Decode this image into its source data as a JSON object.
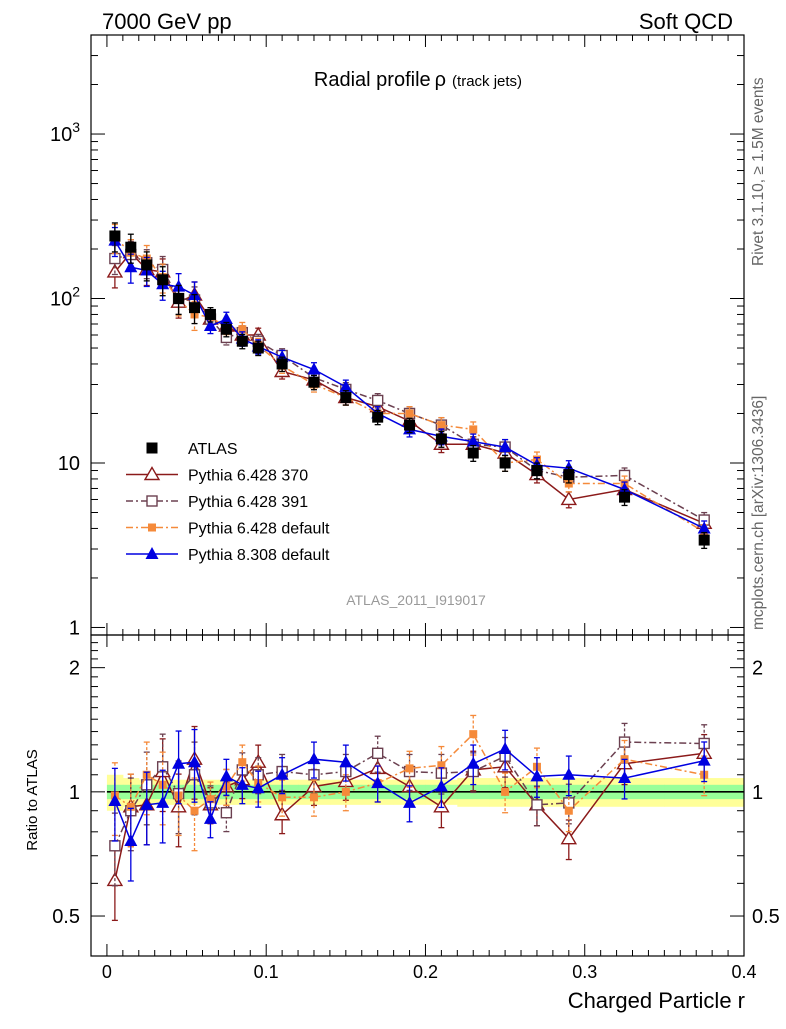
{
  "header": {
    "left": "7000 GeV pp",
    "right": "Soft QCD"
  },
  "side_labels": {
    "rivet": "Rivet 3.1.10, ≥ 1.5M events",
    "mcplots": "mcplots.cern.ch [arXiv:1306.3436]"
  },
  "colors": {
    "atlas": "#000000",
    "p370": "#8b1a1a",
    "p391": "#6b4050",
    "pdefault": "#f58a3a",
    "p8": "#0000e0",
    "band_outer": "#ffff99",
    "band_inner": "#99ff99"
  },
  "chart_data": [
    {
      "type": "scatter",
      "title": "Radial profile",
      "title_symbol": "ρ",
      "title_note": "(track jets)",
      "analysis_label": "ATLAS_2011_I919017",
      "xlabel": "Charged Particle r",
      "ylabel": "",
      "xlim": [
        -0.01,
        0.4
      ],
      "ylim": [
        0.9,
        4000
      ],
      "yscale": "log",
      "y_tick_labels": [
        {
          "v": 1,
          "label": "1"
        },
        {
          "v": 10,
          "label": "10"
        },
        {
          "v": 100,
          "label": "10",
          "exp": "2"
        },
        {
          "v": 1000,
          "label": "10",
          "exp": "3"
        }
      ],
      "legend_position": "bottom-left",
      "x": [
        0.005,
        0.015,
        0.025,
        0.035,
        0.045,
        0.055,
        0.065,
        0.075,
        0.085,
        0.095,
        0.11,
        0.13,
        0.15,
        0.17,
        0.19,
        0.21,
        0.23,
        0.25,
        0.27,
        0.29,
        0.325,
        0.375
      ],
      "series": [
        {
          "name": "ATLAS",
          "key": "atlas",
          "marker": "square-filled",
          "line": "none",
          "values": [
            240,
            205,
            160,
            130,
            100,
            88,
            80,
            65,
            55,
            50,
            40,
            31,
            25,
            19,
            17,
            14,
            11.5,
            10,
            9,
            8.5,
            6.2,
            3.4
          ]
        },
        {
          "name": "Pythia 6.428 370",
          "key": "p370",
          "marker": "triangle-open",
          "line": "solid",
          "values": [
            145,
            190,
            150,
            145,
            95,
            105,
            75,
            68,
            60,
            60,
            36,
            32,
            25,
            22,
            18,
            13,
            13,
            11.5,
            8.5,
            6,
            6.9,
            4.3
          ]
        },
        {
          "name": "Pythia 6.428 391",
          "key": "p391",
          "marker": "square-open",
          "line": "dashdot",
          "values": [
            175,
            185,
            165,
            150,
            100,
            98,
            75,
            58,
            62,
            55,
            45,
            33,
            28,
            24,
            20,
            17,
            13,
            12.5,
            9,
            8.2,
            8.4,
            4.5
          ]
        },
        {
          "name": "Pythia 6.428 default",
          "key": "pdefault",
          "marker": "square-filled-small",
          "line": "dashdot",
          "values": [
            235,
            190,
            175,
            135,
            98,
            80,
            77,
            67,
            65,
            52,
            39,
            30,
            25,
            20,
            20,
            17,
            16,
            10,
            10.5,
            7.5,
            7.5,
            3.8
          ]
        },
        {
          "name": "Pythia 8.308 default",
          "key": "p8",
          "marker": "triangle-filled",
          "line": "solid",
          "values": [
            225,
            155,
            148,
            122,
            118,
            105,
            68,
            75,
            57,
            51,
            44,
            37,
            29,
            20,
            16,
            14.5,
            13.5,
            12.5,
            9.7,
            9.3,
            6.9,
            4.0
          ]
        }
      ]
    },
    {
      "type": "scatter",
      "title": "",
      "xlabel": "Charged Particle r",
      "ylabel": "Ratio to ATLAS",
      "xlim": [
        -0.01,
        0.4
      ],
      "ylim": [
        0.4,
        2.4
      ],
      "yscale": "log",
      "y_tick_labels": [
        {
          "v": 0.5,
          "label": "0.5"
        },
        {
          "v": 1,
          "label": "1"
        },
        {
          "v": 2,
          "label": "2"
        }
      ],
      "x_tick_labels": [
        {
          "v": 0,
          "label": "0"
        },
        {
          "v": 0.1,
          "label": "0.1"
        },
        {
          "v": 0.2,
          "label": "0.2"
        },
        {
          "v": 0.3,
          "label": "0.3"
        },
        {
          "v": 0.4,
          "label": "0.4"
        }
      ],
      "x": [
        0.005,
        0.015,
        0.025,
        0.035,
        0.045,
        0.055,
        0.065,
        0.075,
        0.085,
        0.095,
        0.11,
        0.13,
        0.15,
        0.17,
        0.19,
        0.21,
        0.23,
        0.25,
        0.27,
        0.29,
        0.325,
        0.375
      ],
      "band_outer": [
        0.1,
        0.08,
        0.07,
        0.07,
        0.07,
        0.07,
        0.07,
        0.07,
        0.07,
        0.07,
        0.07,
        0.07,
        0.07,
        0.07,
        0.07,
        0.07,
        0.08,
        0.08,
        0.08,
        0.08,
        0.08,
        0.08
      ],
      "band_inner": [
        0.04,
        0.04,
        0.04,
        0.04,
        0.04,
        0.04,
        0.04,
        0.04,
        0.04,
        0.04,
        0.04,
        0.04,
        0.04,
        0.04,
        0.04,
        0.04,
        0.04,
        0.04,
        0.04,
        0.04,
        0.04,
        0.04
      ],
      "series": [
        {
          "name": "Pythia 6.428 370",
          "key": "p370",
          "marker": "triangle-open",
          "line": "solid",
          "values": [
            0.61,
            0.92,
            0.93,
            1.12,
            0.92,
            1.2,
            0.93,
            1.03,
            1.07,
            1.18,
            0.88,
            1.03,
            1.06,
            1.14,
            1.03,
            0.92,
            1.13,
            1.15,
            0.93,
            0.77,
            1.17,
            1.24
          ]
        },
        {
          "name": "Pythia 6.428 391",
          "key": "p391",
          "marker": "square-open",
          "line": "dashdot",
          "values": [
            0.74,
            0.9,
            1.04,
            1.15,
            0.99,
            1.1,
            0.94,
            0.89,
            1.13,
            1.1,
            1.12,
            1.1,
            1.12,
            1.24,
            1.12,
            1.11,
            1.12,
            1.22,
            0.93,
            0.94,
            1.32,
            1.31
          ]
        },
        {
          "name": "Pythia 6.428 default",
          "key": "pdefault",
          "marker": "square-filled-small",
          "line": "dashdot",
          "values": [
            0.98,
            0.92,
            1.1,
            1.04,
            0.98,
            0.9,
            0.96,
            1.03,
            1.18,
            1.05,
            0.97,
            0.97,
            1.0,
            1.05,
            1.14,
            1.16,
            1.38,
            1.0,
            1.15,
            0.9,
            1.2,
            1.1
          ]
        },
        {
          "name": "Pythia 8.308 default",
          "key": "p8",
          "marker": "triangle-filled",
          "line": "solid",
          "values": [
            0.95,
            0.76,
            0.93,
            0.94,
            1.17,
            1.18,
            0.86,
            1.09,
            1.04,
            1.02,
            1.1,
            1.2,
            1.18,
            1.05,
            0.94,
            1.03,
            1.17,
            1.27,
            1.09,
            1.1,
            1.08,
            1.19
          ]
        }
      ]
    }
  ]
}
